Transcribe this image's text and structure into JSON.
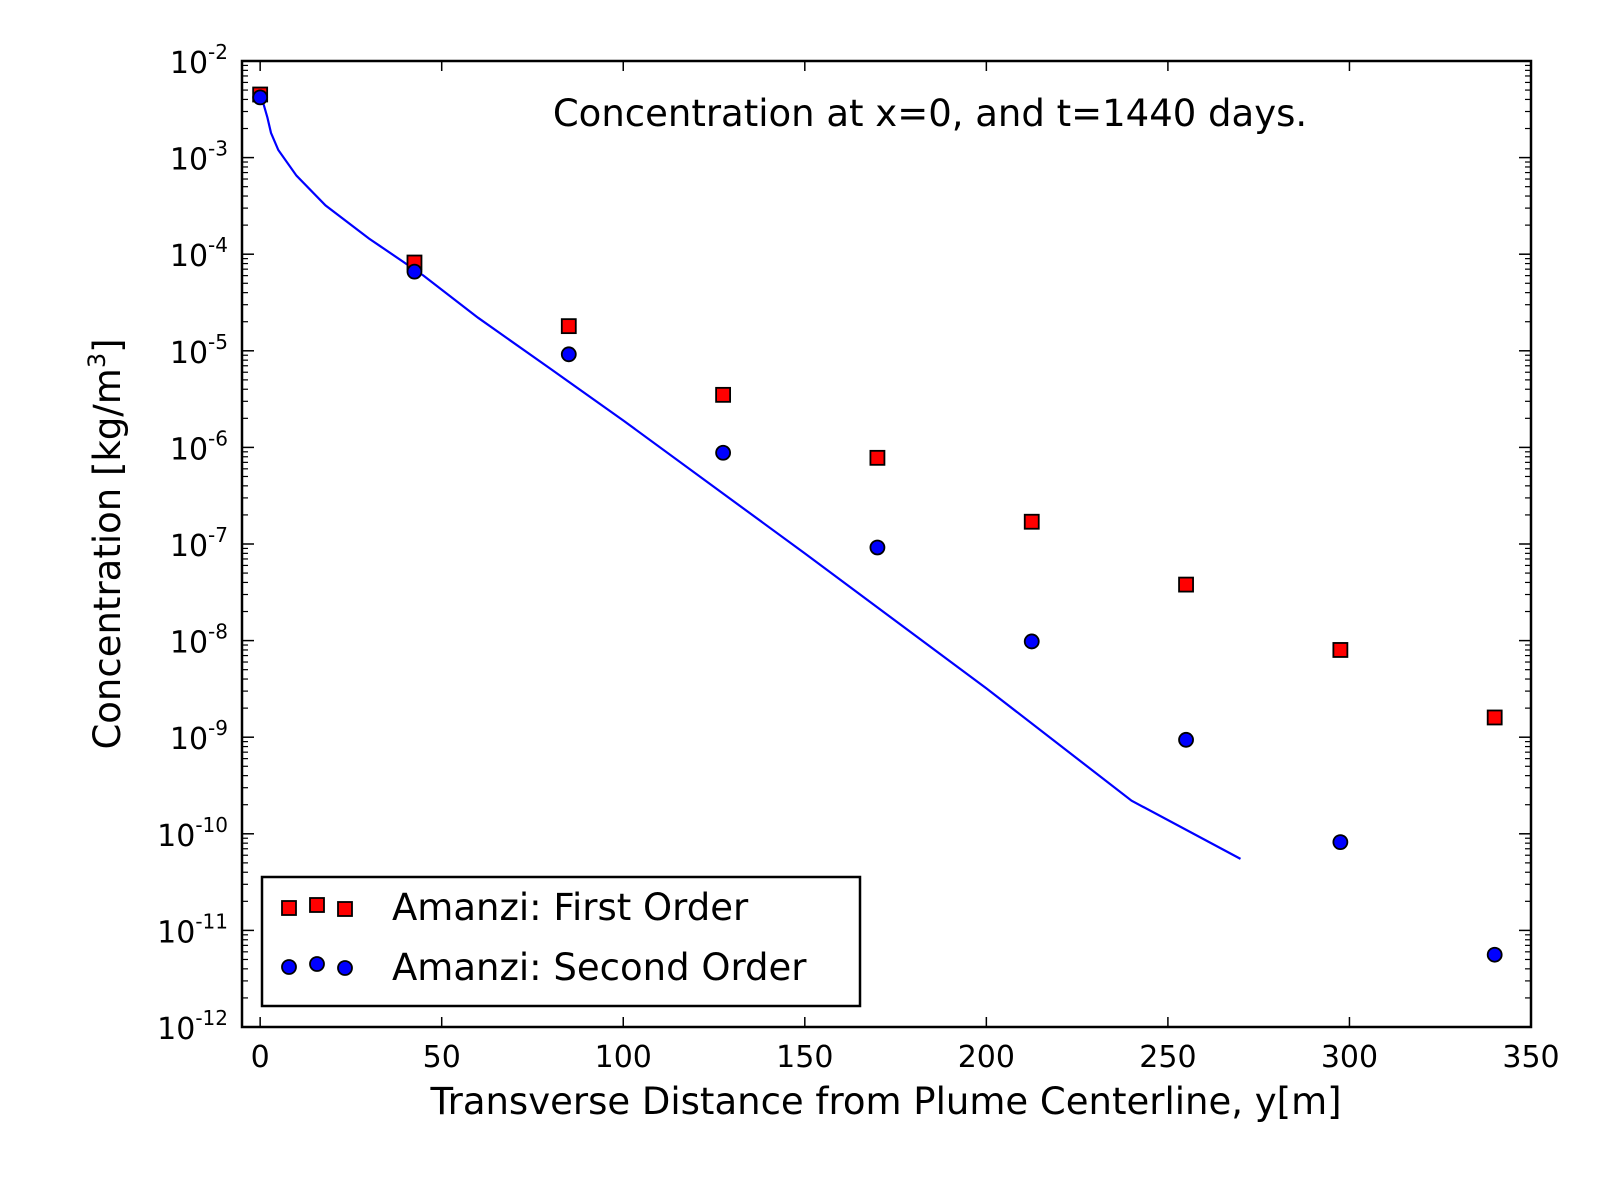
{
  "chart_data": {
    "type": "scatter",
    "title": "Concentration at x=0, and t=1440 days.",
    "xlabel": "Transverse Distance from Plume Centerline, y[m]",
    "ylabel": {
      "main": "Concentration [kg/m",
      "sup": "3",
      "close": "]"
    },
    "xlim": [
      -5,
      350
    ],
    "ylim": [
      1e-12,
      0.01
    ],
    "yscale": "log",
    "x_ticks": [
      0,
      50,
      100,
      150,
      200,
      250,
      300,
      350
    ],
    "y_tick_exponents": [
      -2,
      -3,
      -4,
      -5,
      -6,
      -7,
      -8,
      -9,
      -10,
      -11,
      -12
    ],
    "y_tick_base": "10",
    "legend_position": "lower-left",
    "series": [
      {
        "name": "Amanzi: First Order",
        "kind": "markers",
        "marker": "square",
        "color": "#ff0000",
        "x": [
          0,
          42.5,
          85,
          127.5,
          170,
          212.5,
          255,
          297.5,
          340
        ],
        "y": [
          0.0045,
          8.2e-05,
          1.8e-05,
          3.5e-06,
          7.8e-07,
          1.7e-07,
          3.8e-08,
          8e-09,
          1.6e-09
        ]
      },
      {
        "name": "Amanzi: Second Order",
        "kind": "markers",
        "marker": "circle",
        "color": "#0000ff",
        "x": [
          0,
          42.5,
          85,
          127.5,
          170,
          212.5,
          255,
          297.5,
          340
        ],
        "y": [
          0.0042,
          6.6e-05,
          9.2e-06,
          8.8e-07,
          9.2e-08,
          9.8e-09,
          9.4e-10,
          8.2e-11,
          5.6e-12
        ]
      },
      {
        "kind": "line",
        "color": "#0000ff",
        "x": [
          0,
          1,
          2,
          3,
          5,
          10,
          18,
          30,
          45,
          60,
          80,
          100,
          150,
          200,
          240,
          270
        ],
        "y": [
          0.0042,
          0.0035,
          0.0026,
          0.0018,
          0.0012,
          0.00065,
          0.00032,
          0.000145,
          6e-05,
          2.2e-05,
          6.5e-06,
          1.9e-06,
          8e-08,
          3.2e-09,
          2.2e-10,
          5.5e-11
        ]
      }
    ]
  }
}
